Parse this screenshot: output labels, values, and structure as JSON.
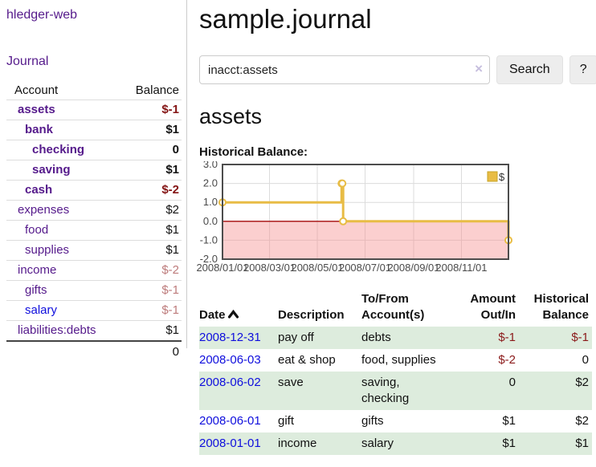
{
  "app": {
    "brand": "hledger-web"
  },
  "colors": {
    "purple_link": "#551a8b",
    "blue_link": "#0f0edd",
    "negative_strong": "#841414",
    "negative_muted": "#bd7b7b",
    "row_highlight_green": "#ddecdd"
  },
  "sidebar": {
    "journal_link": "Journal",
    "accounts": {
      "header_account": "Account",
      "header_balance": "Balance",
      "rows": [
        {
          "name": "assets",
          "depth": 1,
          "balance": "$-1",
          "bold": true,
          "balance_color": "strong",
          "name_color": "purple"
        },
        {
          "name": "bank",
          "depth": 2,
          "balance": "$1",
          "bold": true,
          "balance_color": null,
          "name_color": "purple"
        },
        {
          "name": "checking",
          "depth": 3,
          "balance": "0",
          "bold": true,
          "balance_color": null,
          "name_color": "purple"
        },
        {
          "name": "saving",
          "depth": 3,
          "balance": "$1",
          "bold": true,
          "balance_color": null,
          "name_color": "purple"
        },
        {
          "name": "cash",
          "depth": 2,
          "balance": "$-2",
          "bold": true,
          "balance_color": "strong",
          "name_color": "purple"
        },
        {
          "name": "expenses",
          "depth": 1,
          "balance": "$2",
          "bold": false,
          "balance_color": null,
          "name_color": "purple"
        },
        {
          "name": "food",
          "depth": 2,
          "balance": "$1",
          "bold": false,
          "balance_color": null,
          "name_color": "purple"
        },
        {
          "name": "supplies",
          "depth": 2,
          "balance": "$1",
          "bold": false,
          "balance_color": null,
          "name_color": "purple"
        },
        {
          "name": "income",
          "depth": 1,
          "balance": "$-2",
          "bold": false,
          "balance_color": "muted",
          "name_color": "purple"
        },
        {
          "name": "gifts",
          "depth": 2,
          "balance": "$-1",
          "bold": false,
          "balance_color": "muted",
          "name_color": "purple"
        },
        {
          "name": "salary",
          "depth": 2,
          "balance": "$-1",
          "bold": false,
          "balance_color": "muted",
          "name_color": "blue"
        },
        {
          "name": "liabilities:debts",
          "depth": 1,
          "balance": "$1",
          "bold": false,
          "balance_color": null,
          "name_color": "purple"
        }
      ],
      "total": "0"
    }
  },
  "main": {
    "title": "sample.journal",
    "search": {
      "value": "inacct:assets",
      "clear_icon": "×",
      "button_label": "Search",
      "help_label": "?"
    },
    "account_heading": "assets",
    "chart_label": "Historical Balance:"
  },
  "chart_data": {
    "type": "line",
    "step": true,
    "title": "Historical Balance",
    "series": [
      {
        "name": "$",
        "points": [
          {
            "date": "2008-01-01",
            "value": 1
          },
          {
            "date": "2008-06-01",
            "value": 2
          },
          {
            "date": "2008-06-02",
            "value": 2
          },
          {
            "date": "2008-06-03",
            "value": 0
          },
          {
            "date": "2008-12-31",
            "value": -1
          }
        ]
      }
    ],
    "x_range": [
      "2008-01-01",
      "2008-12-31"
    ],
    "ylim": [
      -2,
      3
    ],
    "y_ticks": [
      "3.0",
      "2.0",
      "1.0",
      "0.0",
      "-1.0",
      "-2.0"
    ],
    "x_ticks": [
      "2008/01/01",
      "2008/03/01",
      "2008/05/01",
      "2008/07/01",
      "2008/09/01",
      "2008/11/01"
    ],
    "grid": true,
    "legend_position": "top-right",
    "negative_region_shaded": true,
    "colors": {
      "line": "#e8bc45",
      "marker_fill": "#ffffff",
      "legend_border": "#c7a325",
      "negative_fill": "#f58c8c",
      "negative_line": "#a40b0b",
      "grid": "#dcdcdc",
      "border": "#4d4d4d",
      "tick_text": "#4a4a4a"
    }
  },
  "register": {
    "headers": {
      "date": "Date",
      "sort_icon": "chevron-up",
      "description": "Description",
      "account": "To/From Account(s)",
      "amount": "Amount Out/In",
      "balance": "Historical Balance"
    },
    "rows": [
      {
        "date": "2008-12-31",
        "description": "pay off",
        "accounts": "debts",
        "amount": "$-1",
        "balance": "$-1"
      },
      {
        "date": "2008-06-03",
        "description": "eat & shop",
        "accounts": "food, supplies",
        "amount": "$-2",
        "balance": "0"
      },
      {
        "date": "2008-06-02",
        "description": "save",
        "accounts": "saving, checking",
        "amount": "0",
        "balance": "$2"
      },
      {
        "date": "2008-06-01",
        "description": "gift",
        "accounts": "gifts",
        "amount": "$1",
        "balance": "$2"
      },
      {
        "date": "2008-01-01",
        "description": "income",
        "accounts": "salary",
        "amount": "$1",
        "balance": "$1"
      }
    ]
  }
}
